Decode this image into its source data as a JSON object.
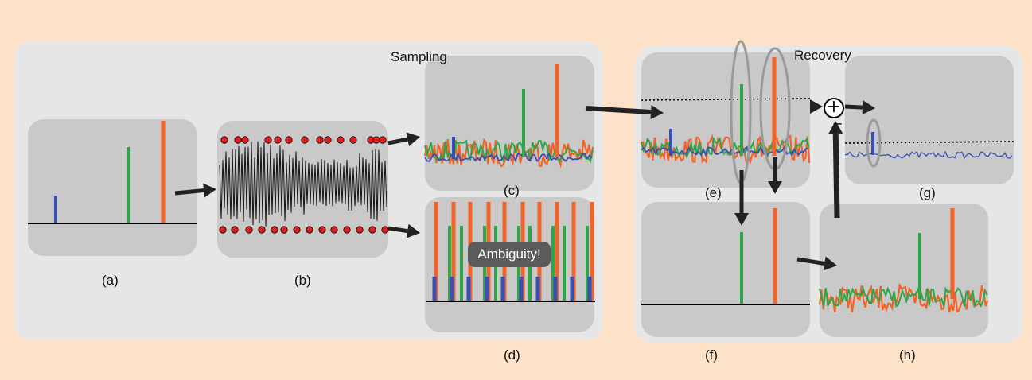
{
  "sections": {
    "sampling": "Sampling",
    "recovery": "Recovery"
  },
  "panels": {
    "a": "(a)",
    "b": "(b)",
    "c": "(c)",
    "d": "(d)",
    "e": "(e)",
    "f": "(f)",
    "g": "(g)",
    "h": "(h)"
  },
  "ambiguity": "Ambiguity!",
  "operator": {
    "plus": "+",
    "minus": "−"
  },
  "colors": {
    "background": "#fde2c9",
    "group": "#e6e6e6",
    "panel": "#c9c9c9",
    "red": "#f0642a",
    "green": "#2fa548",
    "blue": "#3a4fb5",
    "sample_dot": "#e02020",
    "arrow": "#222222"
  }
}
